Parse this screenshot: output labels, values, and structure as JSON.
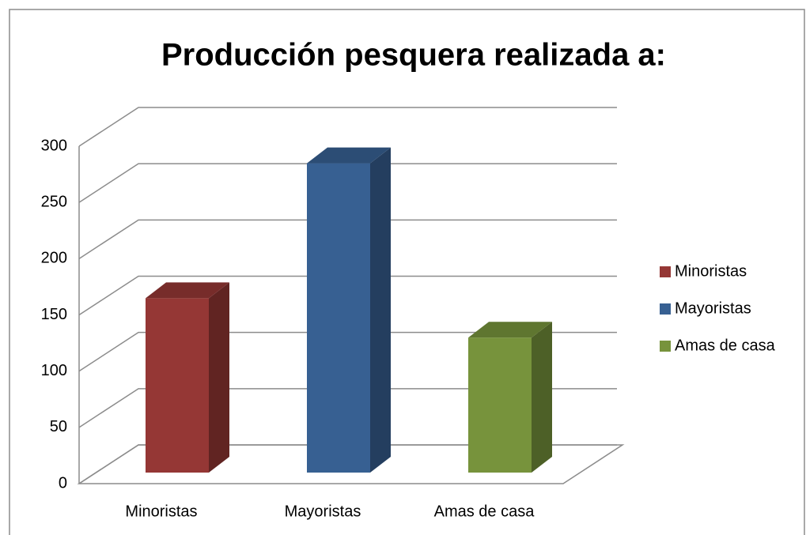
{
  "chart_data": {
    "type": "bar3d",
    "title": "Producción pesquera realizada a:",
    "categories": [
      "Minoristas",
      "Mayoristas",
      "Amas de casa"
    ],
    "values": [
      155,
      275,
      120
    ],
    "colors": [
      "#953735",
      "#376092",
      "#77933c"
    ],
    "ylim": [
      0,
      300
    ],
    "yticks": [
      0,
      50,
      100,
      150,
      200,
      250,
      300
    ],
    "grid": true,
    "legend": "right"
  }
}
